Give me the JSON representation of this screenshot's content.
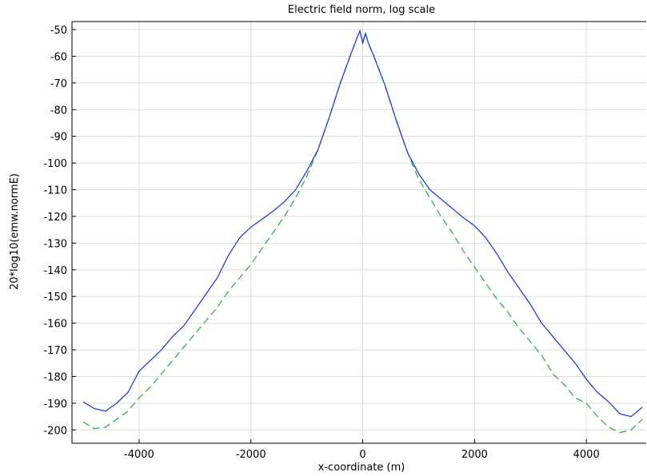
{
  "chart_data": {
    "type": "line",
    "title": "Electric field norm, log scale",
    "xlabel": "x-coordinate (m)",
    "ylabel": "20*log10(emw.normE)",
    "x": [
      -5000,
      -4800,
      -4600,
      -4400,
      -4200,
      -4000,
      -3800,
      -3600,
      -3400,
      -3200,
      -3000,
      -2800,
      -2600,
      -2400,
      -2200,
      -2000,
      -1800,
      -1600,
      -1400,
      -1200,
      -1000,
      -800,
      -600,
      -400,
      -200,
      -100,
      -50,
      0,
      50,
      100,
      200,
      400,
      600,
      800,
      1000,
      1200,
      1400,
      1600,
      1800,
      2000,
      2200,
      2400,
      2600,
      2800,
      3000,
      3200,
      3400,
      3600,
      3800,
      4000,
      4200,
      4400,
      4600,
      4800,
      5000
    ],
    "series": [
      {
        "color": "#1f3fdc",
        "dash": false,
        "values": [
          -189.5,
          -192,
          -193,
          -190,
          -186,
          -178,
          -174,
          -170,
          -165,
          -161,
          -155,
          -149,
          -143,
          -134.5,
          -128,
          -124,
          -121,
          -118,
          -114.5,
          -110,
          -103,
          -95,
          -83,
          -70,
          -58.5,
          -53,
          -50.5,
          -55,
          -51.5,
          -55,
          -60,
          -71,
          -84,
          -96,
          -104,
          -110,
          -113.5,
          -117,
          -120.5,
          -123.5,
          -128,
          -134,
          -141,
          -147,
          -153,
          -160,
          -165,
          -170,
          -175,
          -181,
          -186,
          -189.5,
          -194,
          -195,
          -191.5
        ]
      },
      {
        "color": "#2fb04a",
        "dash": true,
        "values": [
          -197,
          -199.5,
          -199,
          -196,
          -193,
          -188,
          -184,
          -179,
          -174,
          -169,
          -164,
          -159,
          -154,
          -148,
          -143,
          -138,
          -132,
          -126,
          -120,
          -113,
          -105,
          -95,
          -83,
          -70,
          -58.5,
          -53,
          -50.5,
          -55,
          -51.5,
          -55,
          -60,
          -71,
          -84,
          -96,
          -106,
          -113,
          -120,
          -126,
          -133,
          -139,
          -145,
          -151,
          -156,
          -162,
          -167,
          -172,
          -179,
          -183,
          -188,
          -190,
          -195,
          -199,
          -201,
          -200,
          -196
        ]
      }
    ],
    "xlim": [
      -5200,
      5070
    ],
    "ylim": [
      -205,
      -47
    ],
    "xticks": [
      -4000,
      -2000,
      0,
      2000,
      4000
    ],
    "yticks": [
      -50,
      -60,
      -70,
      -80,
      -90,
      -100,
      -110,
      -120,
      -130,
      -140,
      -150,
      -160,
      -170,
      -180,
      -190,
      -200
    ],
    "grid": true
  }
}
